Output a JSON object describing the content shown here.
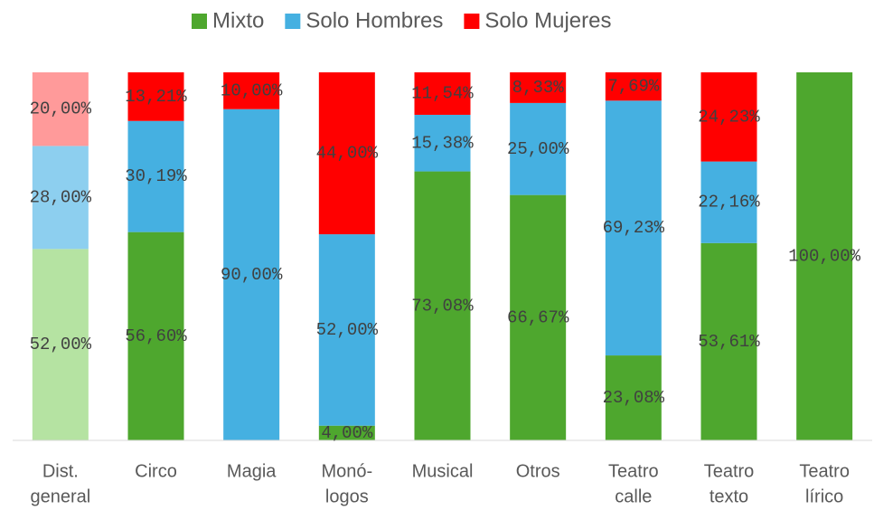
{
  "chart_data": {
    "type": "stacked_bar",
    "categories": [
      [
        "Dist.",
        "general"
      ],
      [
        "Circo"
      ],
      [
        "Magia"
      ],
      [
        "Monó-",
        "logos"
      ],
      [
        "Musical"
      ],
      [
        "Otros"
      ],
      [
        "Teatro",
        "calle"
      ],
      [
        "Teatro",
        "texto"
      ],
      [
        "Teatro",
        "lírico"
      ]
    ],
    "ylim": [
      0,
      100
    ],
    "series": [
      {
        "name": "Mixto",
        "color": "#4ea72e",
        "point_colors": [
          "#b5e3a2",
          "#4ea72e",
          "#4ea72e",
          "#4ea72e",
          "#4ea72e",
          "#4ea72e",
          "#4ea72e",
          "#4ea72e",
          "#4ea72e"
        ],
        "values": [
          52,
          56.6,
          0,
          4,
          73.08,
          66.67,
          23.08,
          53.61,
          100
        ],
        "value_labels": [
          "52,00%",
          "56,60%",
          null,
          "4,00%",
          "73,08%",
          "66,67%",
          "23,08%",
          "53,61%",
          "100,00%"
        ]
      },
      {
        "name": "Solo Hombres",
        "color": "#45b0e1",
        "point_colors": [
          "#8dcfef",
          "#45b0e1",
          "#45b0e1",
          "#45b0e1",
          "#45b0e1",
          "#45b0e1",
          "#45b0e1",
          "#45b0e1",
          "#45b0e1"
        ],
        "values": [
          28,
          30.19,
          90,
          52,
          15.38,
          25,
          69.23,
          22.16,
          0
        ],
        "value_labels": [
          "28,00%",
          "30,19%",
          "90,00%",
          "52,00%",
          "15,38%",
          "25,00%",
          "69,23%",
          "22,16%",
          null
        ]
      },
      {
        "name": "Solo Mujeres",
        "color": "#ff0000",
        "point_colors": [
          "#ff9a9a",
          "#ff0000",
          "#ff0000",
          "#ff0000",
          "#ff0000",
          "#ff0000",
          "#ff0000",
          "#ff0000",
          "#ff0000"
        ],
        "values": [
          20,
          13.21,
          10,
          44,
          11.54,
          8.33,
          7.69,
          24.23,
          0
        ],
        "value_labels": [
          "20,00%",
          "13,21%",
          "10,00%",
          "44,00%",
          "11,54%",
          "8,33%",
          "7,69%",
          "24,23%",
          null
        ]
      }
    ]
  }
}
